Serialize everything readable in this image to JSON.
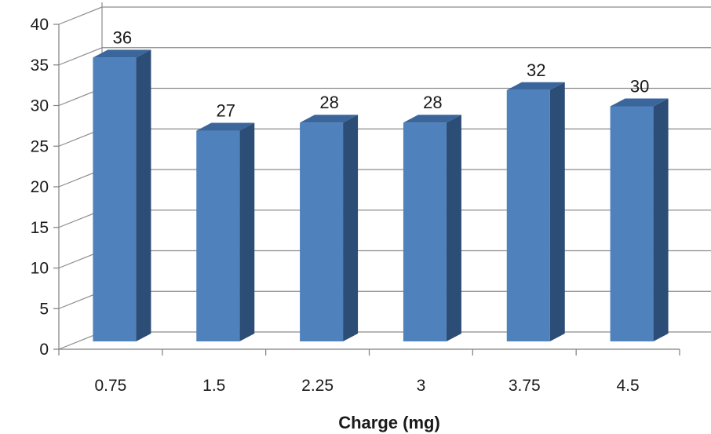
{
  "chart_data": {
    "type": "bar",
    "style": "3d-column",
    "title": "",
    "xlabel": "Charge (mg)",
    "ylabel": "",
    "categories": [
      "0.75",
      "1.5",
      "2.25",
      "3",
      "3.75",
      "4.5"
    ],
    "values": [
      36,
      27,
      28,
      28,
      32,
      30
    ],
    "ylim": [
      0,
      40
    ],
    "yticks": [
      0,
      5,
      10,
      15,
      20,
      25,
      30,
      35,
      40
    ],
    "grid": true,
    "legend": "none",
    "data_labels": true,
    "colors": {
      "bar_front": "#4f81bd",
      "bar_side": "#2c4d75",
      "bar_top": "#3a669b",
      "grid": "#8c8c8c",
      "axis": "#7f7f7f"
    }
  }
}
